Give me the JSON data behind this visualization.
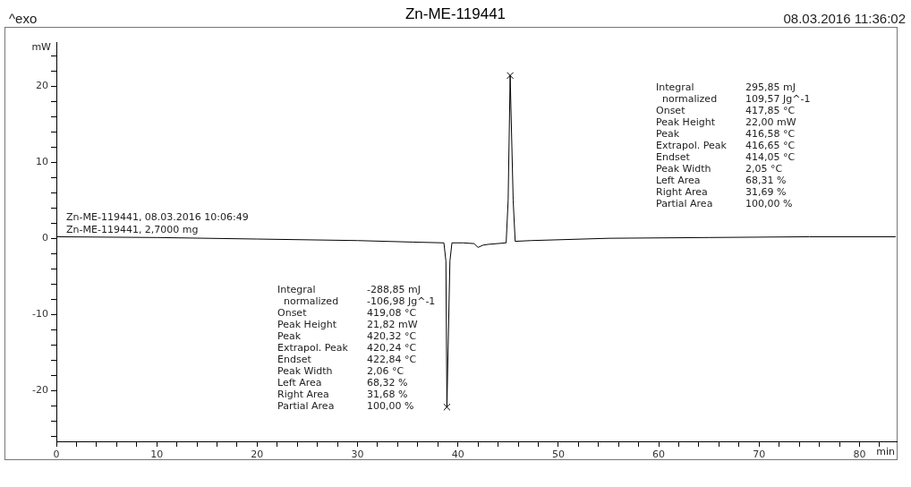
{
  "chart_data": {
    "type": "line",
    "title": "Zn-ME-119441",
    "xlabel": "min",
    "ylabel": "mW",
    "x": [
      0,
      10,
      20,
      30,
      35.5,
      38.6,
      38.8,
      38.9,
      39.2,
      39.4,
      40.5,
      41.6,
      42,
      42.5,
      43,
      44.8,
      45,
      45.2,
      45.5,
      45.7,
      47.3,
      55,
      65,
      75,
      83.6
    ],
    "series": [
      {
        "color": "#000000",
        "marker": "none",
        "values": [
          0.2,
          0.1,
          -0.1,
          -0.3,
          -0.5,
          -0.6,
          -3,
          -22.2,
          -3,
          -0.6,
          -0.6,
          -0.7,
          -1.2,
          -0.9,
          -0.8,
          -0.6,
          5,
          21.4,
          5,
          -0.4,
          -0.3,
          0,
          0.1,
          0.2,
          0.2
        ]
      },
      {
        "type": "scatter",
        "color": "#000000",
        "marker": "cross",
        "x": [
          38.9,
          45.2
        ],
        "values": [
          -22.2,
          21.4
        ]
      }
    ],
    "xlim": [
      0,
      83.7
    ],
    "xticks": [
      0,
      {
        "value": 2,
        "label": null
      },
      {
        "value": 4,
        "label": null
      },
      {
        "value": 6,
        "label": null
      },
      {
        "value": 8,
        "label": null
      },
      10,
      {
        "value": 12,
        "label": null
      },
      {
        "value": 14,
        "label": null
      },
      {
        "value": 16,
        "label": null
      },
      {
        "value": 18,
        "label": null
      },
      20,
      {
        "value": 22,
        "label": null
      },
      {
        "value": 24,
        "label": null
      },
      {
        "value": 26,
        "label": null
      },
      {
        "value": 28,
        "label": null
      },
      30,
      {
        "value": 32,
        "label": null
      },
      {
        "value": 34,
        "label": null
      },
      {
        "value": 36,
        "label": null
      },
      {
        "value": 38,
        "label": null
      },
      40,
      {
        "value": 42,
        "label": null
      },
      {
        "value": 44,
        "label": null
      },
      {
        "value": 46,
        "label": null
      },
      {
        "value": 48,
        "label": null
      },
      50,
      {
        "value": 52,
        "label": null
      },
      {
        "value": 54,
        "label": null
      },
      {
        "value": 56,
        "label": null
      },
      {
        "value": 58,
        "label": null
      },
      60,
      {
        "value": 62,
        "label": null
      },
      {
        "value": 64,
        "label": null
      },
      {
        "value": 66,
        "label": null
      },
      {
        "value": 68,
        "label": null
      },
      70,
      {
        "value": 72,
        "label": null
      },
      {
        "value": 74,
        "label": null
      },
      {
        "value": 76,
        "label": null
      },
      {
        "value": 78,
        "label": null
      },
      80,
      {
        "value": 82,
        "label": null
      }
    ],
    "ylim": [
      -26.7,
      25.8
    ],
    "yticks": [
      {
        "value": -26,
        "label": null
      },
      {
        "value": -24,
        "label": null
      },
      {
        "value": -22,
        "label": null
      },
      -20,
      {
        "value": -18,
        "label": null
      },
      {
        "value": -16,
        "label": null
      },
      {
        "value": -14,
        "label": null
      },
      {
        "value": -12,
        "label": null
      },
      -10,
      {
        "value": -8,
        "label": null
      },
      {
        "value": -6,
        "label": null
      },
      {
        "value": -4,
        "label": null
      },
      {
        "value": -2,
        "label": null
      },
      0,
      {
        "value": 2,
        "label": null
      },
      {
        "value": 4,
        "label": null
      },
      {
        "value": 6,
        "label": null
      },
      {
        "value": 8,
        "label": null
      },
      10,
      {
        "value": 12,
        "label": null
      },
      {
        "value": 14,
        "label": null
      },
      {
        "value": 16,
        "label": null
      },
      {
        "value": 18,
        "label": null
      },
      20,
      {
        "value": 22,
        "label": null
      },
      {
        "value": 24,
        "label": null
      }
    ],
    "grid": false,
    "legend": false,
    "annotations": [
      "^exo",
      "08.03.2016 11:36:02",
      "Zn-ME-119441, 08.03.2016 10:06:49",
      "Zn-ME-119441, 2,7000 mg",
      "Integral\t295,85 mJ\n  normalized\t109,57 Jg^-1\nOnset\t417,85 °C\nPeak Height\t22,00 mW\nPeak\t416,58 °C\nExtrapol. Peak\t416,65 °C\nEndset\t414,05 °C\nPeak Width\t2,05 °C\nLeft Area\t68,31 %\nRight Area\t31,69 %\nPartial Area\t100,00 %",
      "Integral\t-288,85 mJ\n  normalized\t-106,98 Jg^-1\nOnset\t419,08 °C\nPeak Height\t21,82 mW\nPeak\t420,32 °C\nExtrapol. Peak\t420,24 °C\nEndset\t422,84 °C\nPeak Width\t2,06 °C\nLeft Area\t68,32 %\nRight Area\t31,68 %\nPartial Area\t100,00 %"
    ]
  }
}
